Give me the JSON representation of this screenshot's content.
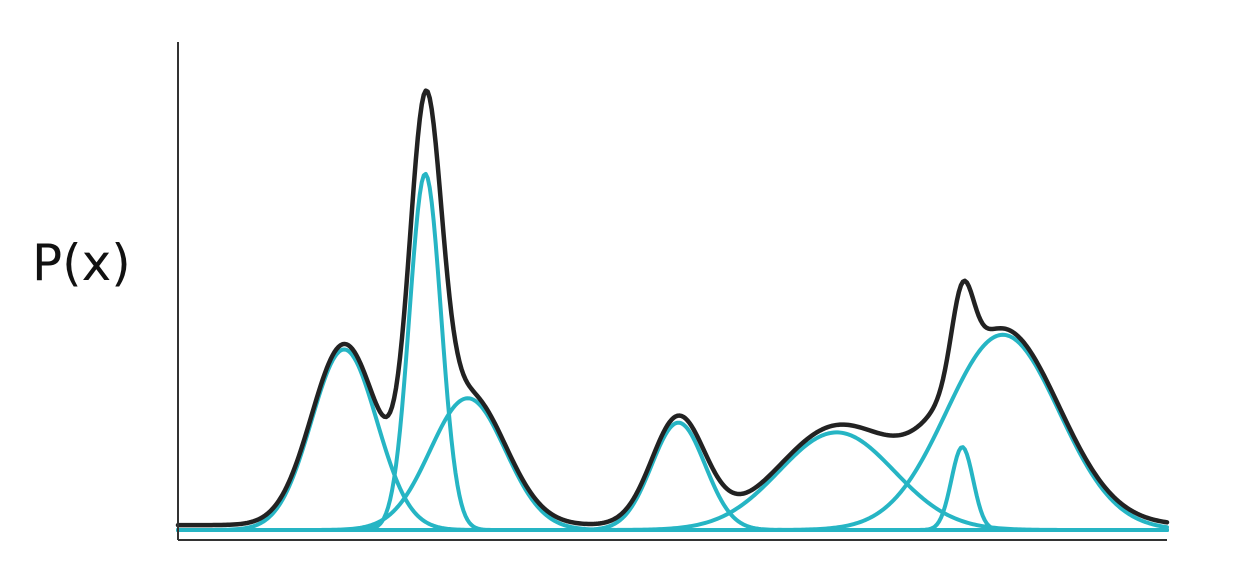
{
  "chart_data": {
    "type": "line",
    "ylabel": "P(x)",
    "xlim": [
      0,
      100
    ],
    "ylim": [
      0,
      1
    ],
    "grid": false,
    "legend": "none",
    "components": [
      {
        "mean": 16.8,
        "sd": 3.3,
        "weight": 0.37
      },
      {
        "mean": 25.0,
        "sd": 1.6,
        "weight": 0.73
      },
      {
        "mean": 29.3,
        "sd": 3.8,
        "weight": 0.27
      },
      {
        "mean": 50.6,
        "sd": 2.7,
        "weight": 0.22
      },
      {
        "mean": 66.6,
        "sd": 5.8,
        "weight": 0.2
      },
      {
        "mean": 79.3,
        "sd": 1.1,
        "weight": 0.17
      },
      {
        "mean": 83.4,
        "sd": 5.7,
        "weight": 0.4
      }
    ],
    "sample_count": 500,
    "colors": {
      "component": "#26b5c4",
      "mixture": "#222222",
      "axis": "#333333"
    }
  }
}
